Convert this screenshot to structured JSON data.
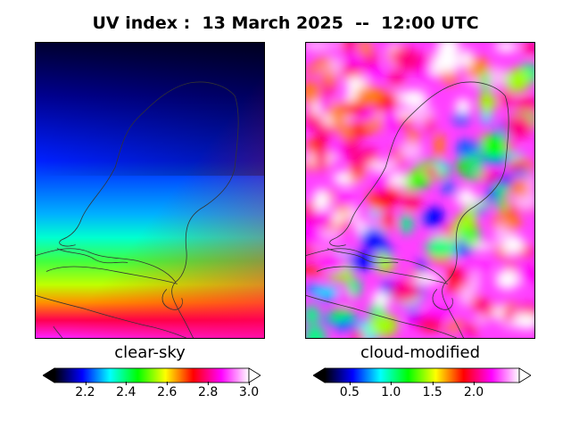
{
  "title": "UV index :  13 March 2025  --  12:00 UTC",
  "panels": [
    {
      "label": "clear-sky",
      "colorbar": {
        "min": 2.05,
        "max": 3.0,
        "ticks": [
          "2.2",
          "2.4",
          "2.6",
          "2.8",
          "3.0"
        ],
        "tick_values": [
          2.2,
          2.4,
          2.6,
          2.8,
          3.0
        ],
        "extend": "both"
      }
    },
    {
      "label": "cloud-modified",
      "colorbar": {
        "min": 0.2,
        "max": 2.55,
        "ticks": [
          "0.5",
          "1.0",
          "1.5",
          "2.0"
        ],
        "tick_values": [
          0.5,
          1.0,
          1.5,
          2.0
        ],
        "extend": "both"
      }
    }
  ],
  "colormap": [
    "#000000",
    "#000080",
    "#0000ff",
    "#0080ff",
    "#00ffff",
    "#00ff80",
    "#00ff00",
    "#80ff00",
    "#ffff00",
    "#ff8000",
    "#ff0000",
    "#ff0080",
    "#ff00ff",
    "#ff80ff",
    "#ffffff"
  ],
  "colors": {
    "border_line": "#333333",
    "background": "#ffffff"
  }
}
